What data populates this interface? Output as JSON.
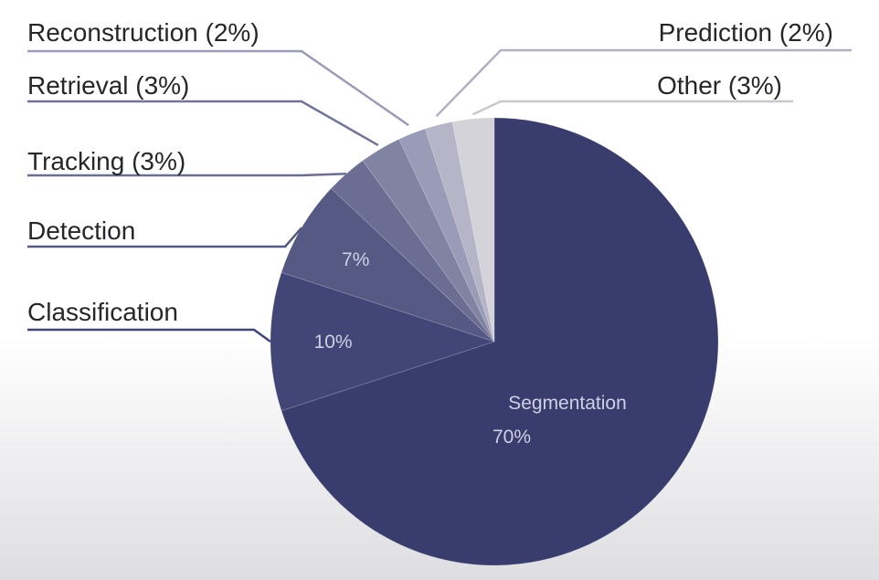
{
  "chart_data": {
    "type": "pie",
    "title": "",
    "slices": [
      {
        "label": "Segmentation",
        "value": 70,
        "color": "#393d6e",
        "pct_text": "70%",
        "display": "Segmentation"
      },
      {
        "label": "Classification",
        "value": 10,
        "color": "#414677",
        "pct_text": "10%",
        "display": "Classification"
      },
      {
        "label": "Detection",
        "value": 7,
        "color": "#555983",
        "pct_text": "7%",
        "display": "Detection"
      },
      {
        "label": "Tracking",
        "value": 3,
        "color": "#6b6d92",
        "pct_text": "",
        "display": "Tracking (3%)"
      },
      {
        "label": "Retrieval",
        "value": 3,
        "color": "#8183a2",
        "pct_text": "",
        "display": "Retrieval (3%)"
      },
      {
        "label": "Reconstruction",
        "value": 2,
        "color": "#9a9bb6",
        "pct_text": "",
        "display": "Reconstruction (2%)"
      },
      {
        "label": "Prediction",
        "value": 2,
        "color": "#b5b5c7",
        "pct_text": "",
        "display": "Prediction (2%)"
      },
      {
        "label": "Other",
        "value": 3,
        "color": "#d3d3d9",
        "pct_text": "",
        "display": "Other (3%)"
      }
    ]
  }
}
